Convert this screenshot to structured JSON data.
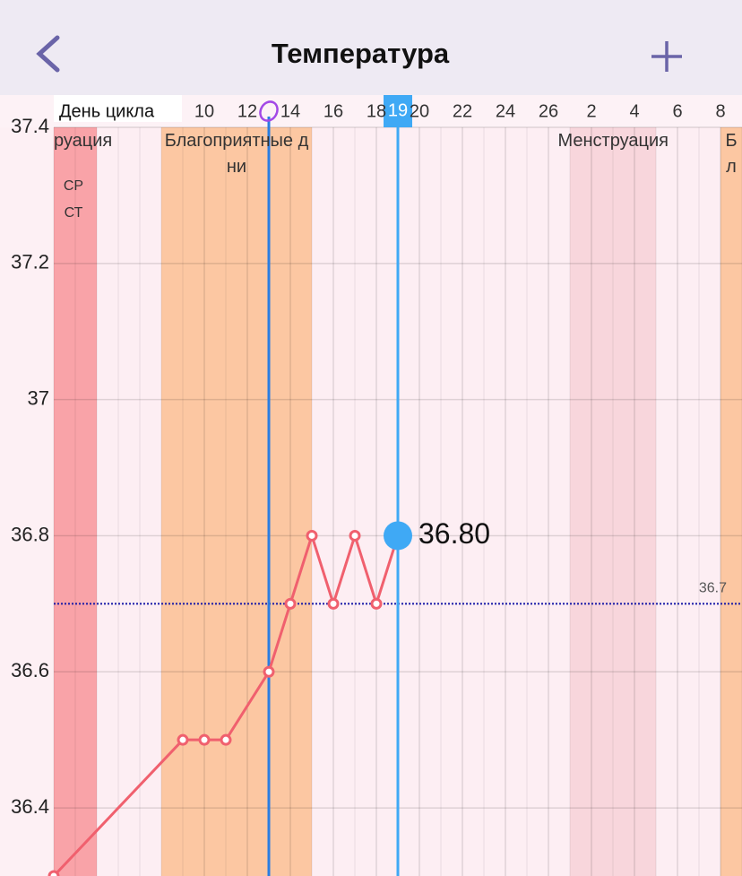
{
  "header": {
    "title": "Температура"
  },
  "chart_data": {
    "type": "line",
    "x_label": "День цикла",
    "x": [
      3,
      9,
      10,
      11,
      13,
      14,
      15,
      16,
      17,
      18,
      19
    ],
    "series": [
      {
        "color": "#f0606e",
        "values": [
          36.3,
          36.5,
          36.5,
          36.5,
          36.6,
          36.7,
          36.8,
          36.7,
          36.8,
          36.7,
          36.8
        ],
        "value_labels": [
          null,
          null,
          null,
          null,
          null,
          null,
          null,
          null,
          null,
          null,
          "36.80"
        ]
      }
    ],
    "xlim": [
      3,
      35
    ],
    "xticks": [
      10,
      12,
      14,
      16,
      18,
      20,
      22,
      24,
      26,
      {
        "value": 28,
        "label": "2"
      },
      {
        "value": 30,
        "label": "4"
      },
      {
        "value": 32,
        "label": "6"
      },
      {
        "value": 34,
        "label": "8"
      }
    ],
    "ylim": [
      36.3,
      37.4
    ],
    "yticks": [
      36.4,
      36.6,
      36.8,
      37,
      37.2,
      37.4
    ],
    "grid": true,
    "baseline": 36.7,
    "ovulation_day": 13,
    "selected_day": 19,
    "bands": [
      {
        "label": "руация",
        "from": 2,
        "to": 5,
        "color": "#f9a3a8"
      },
      {
        "label": "Благоприятные дни",
        "from": 8,
        "to": 15,
        "color": "#fcc7a2"
      },
      {
        "label": "Менструация",
        "from": 27,
        "to": 31,
        "color": "#f8d6dc"
      },
      {
        "label": "Бл",
        "from": 34,
        "to": 41,
        "color": "#fcc7a2"
      }
    ],
    "notes": [
      "СР",
      "СТ"
    ]
  }
}
